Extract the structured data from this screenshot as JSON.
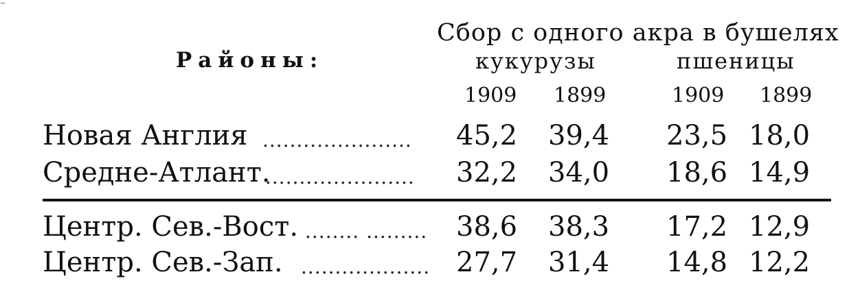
{
  "header": {
    "main": "Сбор с одного акра в бушелях",
    "regions_label": "Районы:",
    "corn": "кукурузы",
    "wheat": "пшеницы"
  },
  "years": [
    "1909",
    "1899",
    "1909",
    "1899"
  ],
  "rows": [
    {
      "region": "Новая Англия",
      "leader": "......................",
      "values": [
        "45,2",
        "39,4",
        "23,5",
        "18,0"
      ]
    },
    {
      "region": "Средне-Атлант.",
      "leader": "......................",
      "values": [
        "32,2",
        "34,0",
        "18,6",
        "14,9"
      ]
    },
    {
      "region": "Центр. Сев.-Вост.",
      "leader": "........ .........",
      "values": [
        "38,6",
        "38,3",
        "17,2",
        "12,9"
      ]
    },
    {
      "region": "Центр. Сев.-Зап.",
      "leader": "...................",
      "values": [
        "27,7",
        "31,4",
        "14,8",
        "12,2"
      ]
    }
  ]
}
